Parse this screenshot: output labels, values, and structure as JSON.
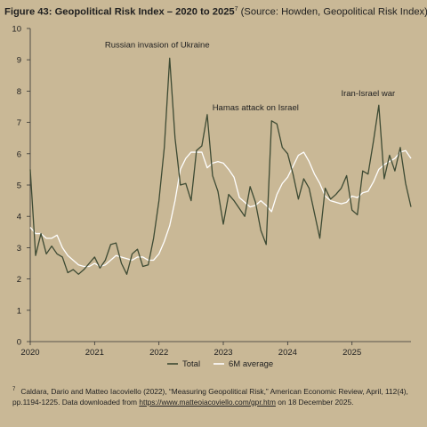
{
  "title": {
    "main": "Figure 43: Geopolitical Risk Index – 2020 to 2025",
    "note_mark": "7",
    "source": " (Source: Howden, Geopolitical Risk Index)"
  },
  "colors": {
    "background": "#c9b896",
    "total_line": "#3d4a33",
    "avg_line": "#ffffff",
    "axis": "#333333"
  },
  "chart_data": {
    "type": "line",
    "title": "",
    "xlabel": "",
    "ylabel": "",
    "ylim": [
      0,
      10
    ],
    "xlim": [
      "2020-01",
      "2025-12"
    ],
    "yticks": [
      "0",
      "1",
      "2",
      "3",
      "4",
      "5",
      "6",
      "7",
      "8",
      "9",
      "10"
    ],
    "xticks": [
      "2020",
      "2021",
      "2022",
      "2023",
      "2024",
      "2025"
    ],
    "grid": false,
    "legend_position": "bottom",
    "x": [
      "2020-01",
      "2020-02",
      "2020-03",
      "2020-04",
      "2020-05",
      "2020-06",
      "2020-07",
      "2020-08",
      "2020-09",
      "2020-10",
      "2020-11",
      "2020-12",
      "2021-01",
      "2021-02",
      "2021-03",
      "2021-04",
      "2021-05",
      "2021-06",
      "2021-07",
      "2021-08",
      "2021-09",
      "2021-10",
      "2021-11",
      "2021-12",
      "2022-01",
      "2022-02",
      "2022-03",
      "2022-04",
      "2022-05",
      "2022-06",
      "2022-07",
      "2022-08",
      "2022-09",
      "2022-10",
      "2022-11",
      "2022-12",
      "2023-01",
      "2023-02",
      "2023-03",
      "2023-04",
      "2023-05",
      "2023-06",
      "2023-07",
      "2023-08",
      "2023-09",
      "2023-10",
      "2023-11",
      "2023-12",
      "2024-01",
      "2024-02",
      "2024-03",
      "2024-04",
      "2024-05",
      "2024-06",
      "2024-07",
      "2024-08",
      "2024-09",
      "2024-10",
      "2024-11",
      "2024-12",
      "2025-01",
      "2025-02",
      "2025-03",
      "2025-04",
      "2025-05",
      "2025-06",
      "2025-07",
      "2025-08",
      "2025-09",
      "2025-10",
      "2025-11",
      "2025-12"
    ],
    "series": [
      {
        "name": "Total",
        "values": [
          5.5,
          2.75,
          3.45,
          2.8,
          3.05,
          2.8,
          2.7,
          2.2,
          2.3,
          2.15,
          2.3,
          2.5,
          2.7,
          2.35,
          2.6,
          3.1,
          3.15,
          2.5,
          2.15,
          2.8,
          2.95,
          2.4,
          2.45,
          3.3,
          4.5,
          6.2,
          9.05,
          6.5,
          5.0,
          5.05,
          4.5,
          6.1,
          6.25,
          7.25,
          5.3,
          4.8,
          3.75,
          4.7,
          4.5,
          4.25,
          4.0,
          4.95,
          4.45,
          3.55,
          3.1,
          7.05,
          6.95,
          6.2,
          6.0,
          5.35,
          4.55,
          5.2,
          4.9,
          4.1,
          3.3,
          4.9,
          4.55,
          4.7,
          4.9,
          5.3,
          4.2,
          4.05,
          5.45,
          5.35,
          6.4,
          7.55,
          5.2,
          5.95,
          5.45,
          6.2,
          5.05,
          4.3
        ]
      },
      {
        "name": "6M average",
        "values": [
          3.65,
          3.45,
          3.45,
          3.3,
          3.3,
          3.4,
          3.0,
          2.75,
          2.6,
          2.45,
          2.4,
          2.4,
          2.5,
          2.4,
          2.45,
          2.6,
          2.75,
          2.7,
          2.65,
          2.6,
          2.7,
          2.7,
          2.6,
          2.6,
          2.8,
          3.2,
          3.7,
          4.5,
          5.5,
          5.85,
          6.05,
          6.05,
          6.05,
          5.55,
          5.7,
          5.75,
          5.7,
          5.5,
          5.25,
          4.6,
          4.45,
          4.3,
          4.35,
          4.5,
          4.35,
          4.15,
          4.7,
          5.05,
          5.25,
          5.6,
          5.95,
          6.05,
          5.75,
          5.35,
          5.05,
          4.65,
          4.5,
          4.45,
          4.4,
          4.45,
          4.65,
          4.6,
          4.75,
          4.8,
          5.1,
          5.5,
          5.65,
          5.75,
          5.85,
          6.05,
          6.1,
          5.85
        ]
      }
    ],
    "annotations": [
      {
        "text": "Russian invasion of Ukraine",
        "x": "2022-03",
        "y": 9.05
      },
      {
        "text": "Hamas attack on Israel",
        "x": "2023-10",
        "y": 7.05
      },
      {
        "text": "Iran-Israel war",
        "x": "2025-06",
        "y": 7.55
      }
    ]
  },
  "footnote": {
    "mark": "7",
    "text_before": "Caldara, Dario and Matteo Iacoviello (2022), “Measuring Geopolitical Risk,” American Economic Review, April, 112(4), pp.1194-1225. Data downloaded from ",
    "link": "https://www.matteoiacoviello.com/gpr.htm",
    "text_after": " on 18 December 2025."
  }
}
